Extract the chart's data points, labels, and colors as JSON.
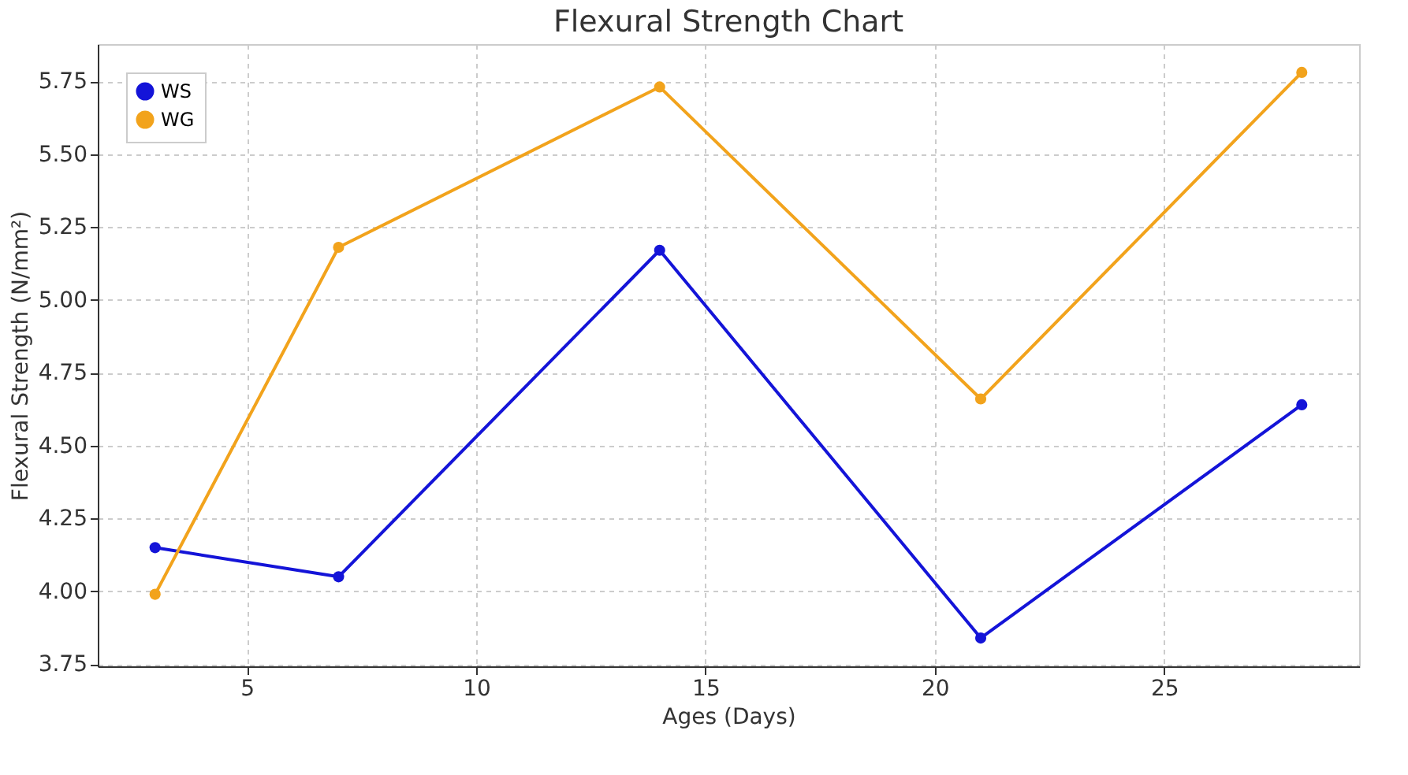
{
  "chart_data": {
    "type": "line",
    "title": "Flexural Strength Chart",
    "xlabel": "Ages (Days)",
    "ylabel": "Flexural Strength (N/mm²)",
    "x": [
      3,
      7,
      14,
      21,
      28
    ],
    "series": [
      {
        "name": "WS",
        "color": "#1414d8",
        "values": [
          4.15,
          4.05,
          5.17,
          3.84,
          4.64
        ]
      },
      {
        "name": "WG",
        "color": "#f2a31c",
        "values": [
          3.99,
          5.18,
          5.73,
          4.66,
          5.78
        ]
      }
    ],
    "xlim": [
      1.75,
      29.25
    ],
    "xticks": [
      5,
      10,
      15,
      20,
      25
    ],
    "ylim": [
      3.743,
      5.877
    ],
    "yticks": [
      3.75,
      {
        "value": 4,
        "label": "4.00"
      },
      4.25,
      {
        "value": 4.5,
        "label": "4.50"
      },
      4.75,
      {
        "value": 5,
        "label": "5.00"
      },
      5.25,
      {
        "value": 5.5,
        "label": "5.50"
      },
      5.75
    ],
    "grid": true,
    "legend": "top left",
    "marker": "circle",
    "line_style": "solid"
  }
}
